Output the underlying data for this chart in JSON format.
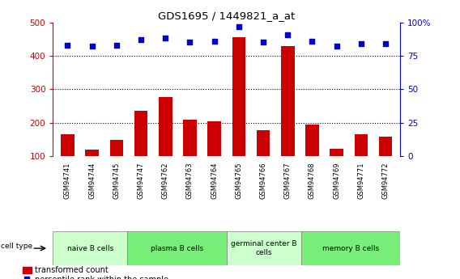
{
  "title": "GDS1695 / 1449821_a_at",
  "samples": [
    "GSM94741",
    "GSM94744",
    "GSM94745",
    "GSM94747",
    "GSM94762",
    "GSM94763",
    "GSM94764",
    "GSM94765",
    "GSM94766",
    "GSM94767",
    "GSM94768",
    "GSM94769",
    "GSM94771",
    "GSM94772"
  ],
  "bar_values": [
    165,
    120,
    148,
    235,
    278,
    208,
    205,
    455,
    178,
    428,
    195,
    122,
    165,
    158
  ],
  "dot_values": [
    83,
    82,
    83,
    87,
    88,
    85,
    86,
    97,
    85,
    91,
    86,
    82,
    84,
    84
  ],
  "cell_groups": [
    {
      "label": "naive B cells",
      "start": 0,
      "end": 3,
      "color": "#ccffcc"
    },
    {
      "label": "plasma B cells",
      "start": 3,
      "end": 7,
      "color": "#77ee77"
    },
    {
      "label": "germinal center B\ncells",
      "start": 7,
      "end": 10,
      "color": "#ccffcc"
    },
    {
      "label": "memory B cells",
      "start": 10,
      "end": 14,
      "color": "#77ee77"
    }
  ],
  "bar_color": "#cc0000",
  "dot_color": "#0000cc",
  "left_ylim": [
    100,
    500
  ],
  "left_yticks": [
    100,
    200,
    300,
    400,
    500
  ],
  "right_ylim": [
    0,
    100
  ],
  "right_yticks": [
    0,
    25,
    50,
    75,
    100
  ],
  "right_yticklabels": [
    "0",
    "25",
    "50",
    "75",
    "100%"
  ],
  "grid_values": [
    200,
    300,
    400
  ],
  "legend_bar_label": "transformed count",
  "legend_dot_label": "percentile rank within the sample",
  "cell_type_label": "cell type",
  "tick_color_left": "#cc0000",
  "tick_color_right": "#0000cc",
  "tick_bg_color": "#d0d0d0",
  "plot_bg": "#ffffff"
}
